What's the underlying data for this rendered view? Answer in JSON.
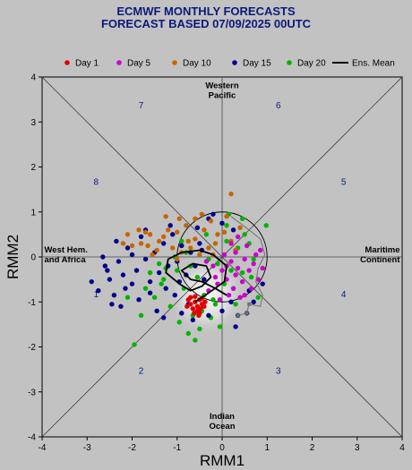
{
  "chart_data": {
    "type": "scatter",
    "title_line1": "ECMWF MONTHLY FORECASTS",
    "title_line2": "FORECAST  BASED 07/09/2025 00UTC",
    "xlabel": "RMM1",
    "ylabel": "RMM2",
    "xlim": [
      -4,
      4
    ],
    "ylim": [
      -4,
      4
    ],
    "ticks": [
      "-4",
      "-3",
      "-2",
      "-1",
      "0",
      "1",
      "2",
      "3",
      "4"
    ],
    "grid": false,
    "legend_position": "top",
    "phases": [
      {
        "label": "1",
        "x": -2.8,
        "y": -0.9
      },
      {
        "label": "2",
        "x": -1.8,
        "y": -2.6
      },
      {
        "label": "3",
        "x": 1.25,
        "y": -2.6
      },
      {
        "label": "4",
        "x": 2.7,
        "y": -0.9
      },
      {
        "label": "5",
        "x": 2.7,
        "y": 1.6
      },
      {
        "label": "6",
        "x": 1.25,
        "y": 3.3
      },
      {
        "label": "7",
        "x": -1.8,
        "y": 3.3
      },
      {
        "label": "8",
        "x": -2.8,
        "y": 1.6
      }
    ],
    "regions": [
      {
        "lines": [
          "Western",
          "Pacific"
        ],
        "x": 0.0,
        "y": 3.75,
        "anchor": "middle"
      },
      {
        "lines": [
          "Indian",
          "Ocean"
        ],
        "x": 0.0,
        "y": -3.6,
        "anchor": "middle"
      },
      {
        "lines": [
          "West Hem.",
          "and Africa"
        ],
        "x": -3.95,
        "y": 0.1,
        "anchor": "start"
      },
      {
        "lines": [
          "Maritime",
          "Continent"
        ],
        "x": 3.95,
        "y": 0.1,
        "anchor": "end"
      }
    ],
    "series": [
      {
        "name": "Day 1",
        "color": "#e00000",
        "points": [
          [
            -0.75,
            -0.95
          ],
          [
            -0.7,
            -1.05
          ],
          [
            -0.6,
            -1.0
          ],
          [
            -0.55,
            -1.1
          ],
          [
            -0.5,
            -0.95
          ],
          [
            -0.45,
            -1.05
          ],
          [
            -0.65,
            -1.15
          ],
          [
            -0.55,
            -1.2
          ],
          [
            -0.5,
            -1.25
          ],
          [
            -0.4,
            -1.1
          ],
          [
            -0.7,
            -0.9
          ],
          [
            -0.6,
            -0.88
          ],
          [
            -0.45,
            -0.92
          ],
          [
            -0.52,
            -1.3
          ],
          [
            -0.62,
            -1.25
          ],
          [
            -0.38,
            -1.0
          ],
          [
            -0.78,
            -1.1
          ],
          [
            -0.48,
            -1.15
          ]
        ]
      },
      {
        "name": "Day 5",
        "color": "#cc00cc",
        "points": [
          [
            0.2,
            -0.1
          ],
          [
            0.35,
            -0.25
          ],
          [
            0.5,
            -0.05
          ],
          [
            0.6,
            -0.3
          ],
          [
            0.45,
            -0.55
          ],
          [
            0.25,
            -0.7
          ],
          [
            0.1,
            -0.5
          ],
          [
            0.0,
            -0.3
          ],
          [
            -0.1,
            -0.6
          ],
          [
            0.3,
            0.1
          ],
          [
            0.55,
            0.25
          ],
          [
            0.7,
            -0.15
          ],
          [
            0.15,
            -0.85
          ],
          [
            -0.2,
            -0.2
          ],
          [
            0.4,
            -0.9
          ],
          [
            0.8,
            -0.5
          ],
          [
            -0.3,
            -0.75
          ],
          [
            0.05,
            0.05
          ],
          [
            0.65,
            -0.7
          ],
          [
            0.9,
            -0.25
          ],
          [
            -0.05,
            -0.95
          ],
          [
            0.3,
            -0.4
          ],
          [
            0.5,
            -0.85
          ],
          [
            0.2,
            0.3
          ],
          [
            -0.15,
            -0.45
          ],
          [
            0.75,
            0.05
          ],
          [
            -0.35,
            -0.1
          ],
          [
            0.1,
            -0.2
          ],
          [
            0.85,
            0.15
          ],
          [
            0.35,
            0.45
          ]
        ]
      },
      {
        "name": "Day 10",
        "color": "#c86400",
        "points": [
          [
            -1.6,
            0.5
          ],
          [
            -1.3,
            0.45
          ],
          [
            -1.0,
            0.55
          ],
          [
            -0.8,
            0.7
          ],
          [
            -0.6,
            0.4
          ],
          [
            -0.3,
            0.2
          ],
          [
            -0.1,
            0.5
          ],
          [
            0.2,
            0.35
          ],
          [
            -1.8,
            0.3
          ],
          [
            -1.45,
            0.15
          ],
          [
            -1.1,
            0.2
          ],
          [
            -0.9,
            0.1
          ],
          [
            -0.5,
            0.05
          ],
          [
            -0.2,
            0.05
          ],
          [
            0.1,
            0.9
          ],
          [
            -1.7,
            0.55
          ],
          [
            -2.0,
            0.25
          ],
          [
            -1.2,
            0.6
          ],
          [
            -0.75,
            0.35
          ],
          [
            -0.4,
            0.6
          ],
          [
            0.05,
            0.55
          ],
          [
            -2.1,
            0.5
          ],
          [
            -1.55,
            0.05
          ],
          [
            -0.95,
            0.85
          ],
          [
            -0.6,
            0.85
          ],
          [
            -0.25,
            0.8
          ],
          [
            0.2,
            1.4
          ],
          [
            -1.85,
            0.6
          ],
          [
            -1.4,
            0.35
          ],
          [
            -0.7,
            0.2
          ],
          [
            0.3,
            0.15
          ],
          [
            -0.15,
            0.3
          ],
          [
            -1.0,
            -0.05
          ],
          [
            -2.2,
            0.3
          ],
          [
            -1.25,
            0.9
          ],
          [
            0.4,
            0.65
          ],
          [
            -0.45,
            0.95
          ],
          [
            -1.65,
            0.25
          ]
        ]
      },
      {
        "name": "Day 15",
        "color": "#00008b",
        "points": [
          [
            -2.9,
            -0.55
          ],
          [
            -2.75,
            -0.75
          ],
          [
            -2.6,
            -0.2
          ],
          [
            -2.5,
            -0.5
          ],
          [
            -2.4,
            -0.85
          ],
          [
            -2.3,
            -0.1
          ],
          [
            -2.2,
            -0.4
          ],
          [
            -2.1,
            0.2
          ],
          [
            -2.0,
            -0.6
          ],
          [
            -1.9,
            -0.3
          ],
          [
            -1.8,
            0.45
          ],
          [
            -1.7,
            -0.05
          ],
          [
            -1.6,
            -0.8
          ],
          [
            -1.5,
            0.1
          ],
          [
            -1.4,
            -0.35
          ],
          [
            -1.3,
            0.3
          ],
          [
            -1.2,
            -0.2
          ],
          [
            -1.1,
            0.5
          ],
          [
            -1.0,
            -0.1
          ],
          [
            -0.9,
            0.25
          ],
          [
            -0.8,
            -0.4
          ],
          [
            -0.7,
            0.1
          ],
          [
            -0.6,
            -0.2
          ],
          [
            -0.5,
            0.3
          ],
          [
            -0.4,
            -0.5
          ],
          [
            -2.65,
            0.0
          ],
          [
            -2.45,
            -1.05
          ],
          [
            -1.45,
            -1.2
          ],
          [
            -1.3,
            -1.35
          ],
          [
            -1.05,
            -0.85
          ],
          [
            -0.9,
            -1.25
          ],
          [
            -0.65,
            -1.4
          ],
          [
            -0.3,
            -1.3
          ],
          [
            0.0,
            -1.2
          ],
          [
            0.3,
            -1.55
          ],
          [
            0.55,
            -1.25
          ],
          [
            0.35,
            -1.3
          ],
          [
            -2.25,
            -1.1
          ],
          [
            -1.7,
            0.6
          ],
          [
            -1.15,
            0.7
          ],
          [
            -0.55,
            0.65
          ],
          [
            -0.3,
            0.85
          ],
          [
            0.0,
            0.75
          ],
          [
            0.25,
            0.6
          ],
          [
            -2.0,
            0.05
          ],
          [
            -1.6,
            -0.55
          ],
          [
            -2.15,
            -0.7
          ],
          [
            0.6,
            -0.75
          ],
          [
            -0.95,
            -0.55
          ],
          [
            -0.75,
            -1.05
          ],
          [
            0.2,
            -1.0
          ],
          [
            -0.2,
            0.95
          ],
          [
            -2.35,
            0.35
          ],
          [
            -1.85,
            -0.95
          ],
          [
            -1.25,
            -0.7
          ],
          [
            0.9,
            -0.6
          ],
          [
            0.7,
            -1.0
          ],
          [
            -0.45,
            0.15
          ],
          [
            -2.55,
            -0.3
          ]
        ]
      },
      {
        "name": "Day 20",
        "color": "#00b400",
        "points": [
          [
            -1.95,
            -1.95
          ],
          [
            -1.8,
            -1.3
          ],
          [
            -1.5,
            -0.9
          ],
          [
            -1.3,
            -0.5
          ],
          [
            -1.15,
            -1.1
          ],
          [
            -1.0,
            -0.3
          ],
          [
            -0.85,
            -0.7
          ],
          [
            -0.7,
            -0.2
          ],
          [
            -0.5,
            -1.6
          ],
          [
            -0.4,
            -0.85
          ],
          [
            -0.25,
            -1.35
          ],
          [
            -0.1,
            -0.15
          ],
          [
            0.05,
            -0.6
          ],
          [
            0.2,
            -0.3
          ],
          [
            0.35,
            0.2
          ],
          [
            0.5,
            0.5
          ],
          [
            0.65,
            -0.45
          ],
          [
            0.8,
            -0.9
          ],
          [
            -0.75,
            -1.7
          ],
          [
            -0.6,
            -1.85
          ],
          [
            -0.35,
            0.5
          ],
          [
            -0.2,
            -0.95
          ],
          [
            0.3,
            -1.05
          ],
          [
            0.45,
            0.85
          ],
          [
            0.98,
            0.7
          ],
          [
            0.15,
            0.95
          ],
          [
            -1.7,
            -0.7
          ],
          [
            -1.4,
            -0.15
          ],
          [
            -0.95,
            -1.45
          ],
          [
            -0.55,
            -0.45
          ],
          [
            -0.05,
            -1.55
          ],
          [
            0.1,
            0.35
          ],
          [
            0.6,
            0.3
          ],
          [
            -1.25,
            -0.25
          ],
          [
            -0.8,
            0.1
          ],
          [
            -0.3,
            -0.05
          ],
          [
            0.25,
            -0.7
          ],
          [
            -1.6,
            -0.35
          ],
          [
            -2.1,
            -0.9
          ],
          [
            -0.65,
            -1.3
          ],
          [
            -0.15,
            -1.05
          ],
          [
            0.7,
            -0.05
          ],
          [
            -1.05,
            0.0
          ],
          [
            0.45,
            -0.35
          ],
          [
            -0.45,
            -1.2
          ],
          [
            -0.9,
            0.35
          ],
          [
            0.1,
            0.7
          ],
          [
            -1.35,
            -0.6
          ]
        ]
      }
    ],
    "ensemble_mean": {
      "name": "Ens. Mean",
      "color": "#000000",
      "points": [
        [
          -0.6,
          -1.0
        ],
        [
          -0.3,
          -0.8
        ],
        [
          0.05,
          -0.55
        ],
        [
          0.1,
          -0.2
        ],
        [
          -0.2,
          0.05
        ],
        [
          -0.5,
          0.15
        ],
        [
          -0.9,
          0.1
        ],
        [
          -1.2,
          -0.05
        ],
        [
          -1.25,
          -0.35
        ],
        [
          -0.95,
          -0.6
        ],
        [
          -0.7,
          -0.75
        ],
        [
          -0.45,
          -0.65
        ],
        [
          -0.25,
          -0.45
        ],
        [
          -0.35,
          -0.2
        ],
        [
          -0.65,
          -0.15
        ],
        [
          -0.9,
          -0.3
        ],
        [
          -0.7,
          -0.5
        ],
        [
          -0.45,
          -0.55
        ],
        [
          -0.15,
          -0.7
        ],
        [
          0.1,
          -0.85
        ]
      ]
    },
    "analysis_track": {
      "color": "#707070",
      "points": [
        [
          0.2,
          0.9
        ],
        [
          0.6,
          0.6
        ],
        [
          0.85,
          0.4
        ],
        [
          0.95,
          0.05
        ],
        [
          0.8,
          -0.25
        ],
        [
          0.75,
          -0.55
        ],
        [
          0.9,
          -0.85
        ],
        [
          0.85,
          -1.1
        ],
        [
          0.6,
          -1.05
        ],
        [
          0.55,
          -1.25
        ],
        [
          0.35,
          -1.3
        ]
      ]
    },
    "unit_circle_radius": 1
  },
  "legend": {
    "entries": [
      {
        "label": "Day 1",
        "color": "#e00000",
        "kind": "dot"
      },
      {
        "label": "Day 5",
        "color": "#cc00cc",
        "kind": "dot"
      },
      {
        "label": "Day 10",
        "color": "#c86400",
        "kind": "dot"
      },
      {
        "label": "Day 15",
        "color": "#00008b",
        "kind": "dot"
      },
      {
        "label": "Day 20",
        "color": "#00b400",
        "kind": "dot"
      },
      {
        "label": "Ens. Mean",
        "color": "#000000",
        "kind": "line"
      }
    ]
  }
}
